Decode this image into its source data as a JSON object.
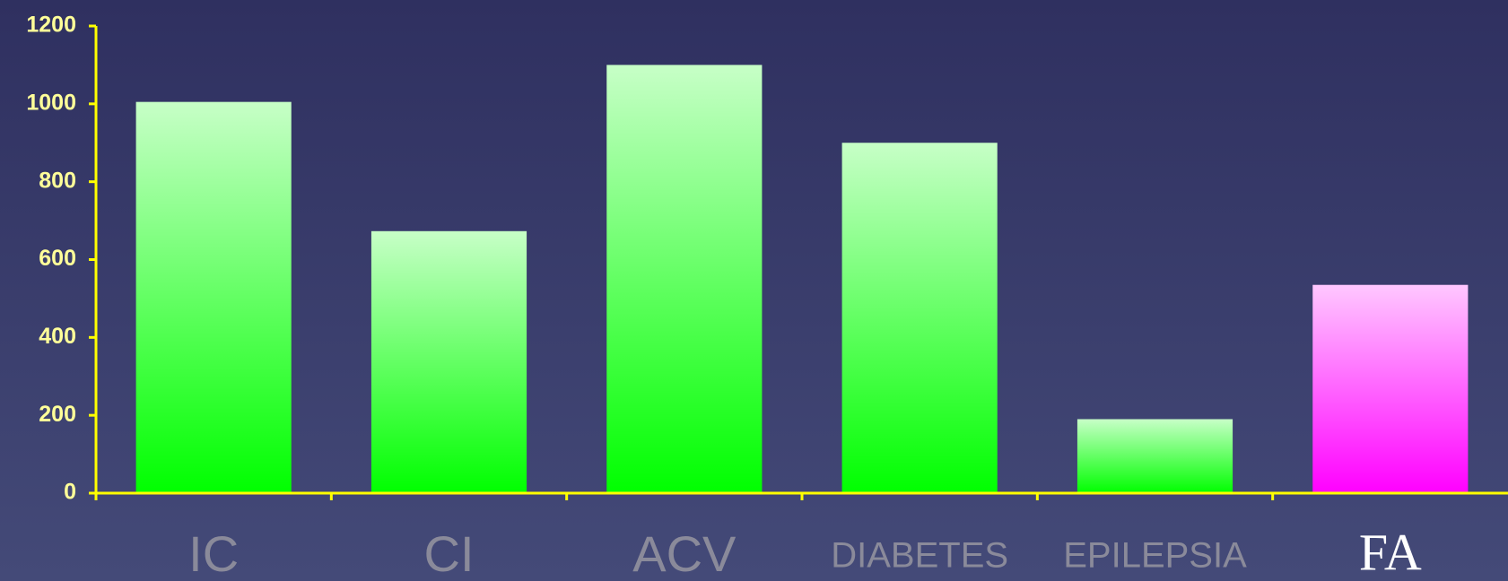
{
  "chart_data": {
    "type": "bar",
    "categories": [
      "IC",
      "CI",
      "ACV",
      "DIABETES",
      "EPILEPSIA",
      "FA"
    ],
    "values": [
      1005,
      673,
      1100,
      900,
      190,
      535
    ],
    "colors": [
      "#00ff00",
      "#00ff00",
      "#00ff00",
      "#00ff00",
      "#00ff00",
      "#ff00ff"
    ],
    "ylim": [
      0,
      1200
    ],
    "yticks": [
      0,
      200,
      400,
      600,
      800,
      1000,
      1200
    ],
    "grid": false,
    "axis_color": "#ffff00"
  }
}
